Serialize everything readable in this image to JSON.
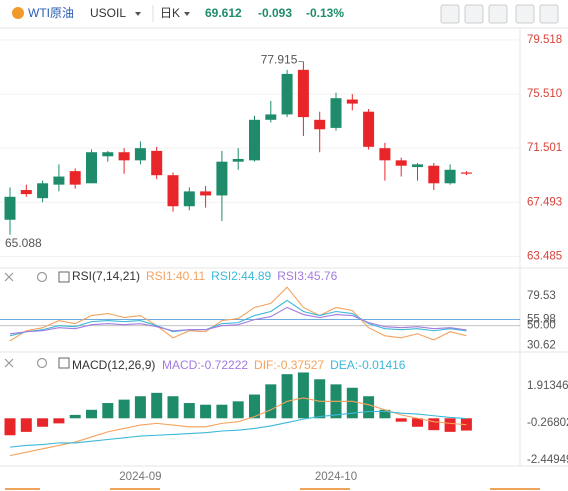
{
  "header": {
    "symbol": "WTI原油",
    "code": "USOIL",
    "period": "日K",
    "price": "69.612",
    "change": "-0.093",
    "change_pct": "-0.13%"
  },
  "chart_data": [
    {
      "type": "candlestick",
      "up_color": "#1e8c6b",
      "down_color": "#e8262a",
      "categories": [
        null,
        null,
        null,
        null,
        null,
        null,
        null,
        null,
        "2024-09",
        null,
        null,
        null,
        null,
        null,
        null,
        null,
        null,
        null,
        null,
        null,
        "2024-10",
        null,
        null,
        null,
        null,
        null,
        null,
        null,
        null
      ],
      "open": [
        66.2,
        68.4,
        67.8,
        68.8,
        69.8,
        68.9,
        70.9,
        71.2,
        70.6,
        71.3,
        69.5,
        67.2,
        68.3,
        68.0,
        70.5,
        70.6,
        73.6,
        74.0,
        77.3,
        73.6,
        73.0,
        75.1,
        74.2,
        71.5,
        70.6,
        70.1,
        70.2,
        68.9,
        69.7
      ],
      "high": [
        68.6,
        68.8,
        69.1,
        70.3,
        70.0,
        71.4,
        71.3,
        71.5,
        72.0,
        71.6,
        69.7,
        68.6,
        68.7,
        71.3,
        71.5,
        73.9,
        75.0,
        77.3,
        77.915,
        74.2,
        75.6,
        75.5,
        74.4,
        71.9,
        70.8,
        70.4,
        70.4,
        70.3,
        69.8
      ],
      "low": [
        65.088,
        67.9,
        67.5,
        68.3,
        68.5,
        68.9,
        70.5,
        69.6,
        70.3,
        69.2,
        66.8,
        66.9,
        67.1,
        66.1,
        69.9,
        70.5,
        73.4,
        73.8,
        72.4,
        71.2,
        72.8,
        74.3,
        71.4,
        69.1,
        69.4,
        69.1,
        68.4,
        68.8,
        69.5
      ],
      "close": [
        67.9,
        68.1,
        68.9,
        69.4,
        68.8,
        71.2,
        71.2,
        70.6,
        71.5,
        69.5,
        67.2,
        68.3,
        68.0,
        70.5,
        70.7,
        73.6,
        74.0,
        77.0,
        73.8,
        72.9,
        75.2,
        74.8,
        71.6,
        70.6,
        70.2,
        70.3,
        68.9,
        69.9,
        69.612
      ],
      "annotations": [
        "77.915",
        "65.088"
      ],
      "ylim": [
        62.85,
        80.25
      ],
      "yticks": [
        79.518,
        {
          "value": 75.51,
          "label": "75.510"
        },
        71.501,
        67.493,
        63.485
      ],
      "grid": true
    },
    {
      "type": "line",
      "title": "RSI(7,14,21)",
      "ylim": [
        24,
        104
      ],
      "yticks": [
        79.53,
        55.98,
        {
          "value": 50,
          "label": "50.00"
        },
        30.62
      ],
      "series": [
        {
          "name": "RSI1:40.11",
          "color": "#f5a25d",
          "values": [
            35,
            45,
            48,
            55,
            52,
            60,
            62,
            58,
            60,
            50,
            38,
            45,
            44,
            55,
            57,
            68,
            72,
            88,
            68,
            60,
            68,
            65,
            48,
            40,
            38,
            42,
            36,
            44,
            40.11
          ]
        },
        {
          "name": "RSI2:44.89",
          "color": "#3bb8d8",
          "values": [
            40,
            44,
            46,
            50,
            49,
            54,
            55,
            54,
            55,
            50,
            44,
            46,
            46,
            52,
            53,
            60,
            64,
            75,
            64,
            60,
            64,
            62,
            52,
            47,
            46,
            47,
            45,
            47,
            44.89
          ]
        },
        {
          "name": "RSI3:45.76",
          "color": "#a37be0",
          "values": [
            42,
            44,
            45,
            48,
            47,
            51,
            52,
            51,
            52,
            49,
            45,
            46,
            46,
            50,
            51,
            56,
            59,
            68,
            61,
            58,
            61,
            60,
            53,
            49,
            48,
            49,
            47,
            48,
            45.76
          ]
        }
      ]
    },
    {
      "type": "combo",
      "title": "MACD(12,26,9)",
      "ylim": [
        -2.93,
        3.73
      ],
      "yticks": [
        1.91346,
        -0.26802,
        -2.44949
      ],
      "series": [
        {
          "name": "MACD:-0.72222",
          "kind": "bar",
          "color": "#a37be0",
          "up_color": "#1e8c6b",
          "down_color": "#e8262a",
          "values": [
            -1.0,
            -0.8,
            -0.5,
            -0.3,
            0.2,
            0.5,
            0.9,
            1.1,
            1.3,
            1.5,
            1.3,
            0.9,
            0.8,
            0.8,
            1.0,
            1.4,
            2.0,
            2.6,
            2.7,
            2.3,
            2.0,
            1.8,
            1.3,
            0.5,
            -0.2,
            -0.5,
            -0.7,
            -0.8,
            -0.72222
          ]
        },
        {
          "name": "DIF:-0.37527",
          "kind": "line",
          "color": "#f5a25d",
          "values": [
            -2.2,
            -2.0,
            -1.8,
            -1.6,
            -1.4,
            -1.1,
            -0.8,
            -0.6,
            -0.4,
            -0.3,
            -0.4,
            -0.5,
            -0.5,
            -0.3,
            -0.2,
            0.1,
            0.5,
            1.0,
            1.2,
            1.0,
            1.0,
            1.0,
            0.8,
            0.5,
            0.2,
            0.0,
            -0.2,
            -0.3,
            -0.37527
          ]
        },
        {
          "name": "DEA:-0.01416",
          "kind": "line",
          "color": "#3bb8d8",
          "values": [
            -1.7,
            -1.6,
            -1.55,
            -1.45,
            -1.45,
            -1.35,
            -1.25,
            -1.15,
            -1.05,
            -1.0,
            -0.95,
            -0.9,
            -0.85,
            -0.75,
            -0.7,
            -0.6,
            -0.45,
            -0.25,
            -0.05,
            0.1,
            0.2,
            0.3,
            0.4,
            0.4,
            0.3,
            0.25,
            0.15,
            0.05,
            -0.01416
          ]
        }
      ]
    }
  ]
}
